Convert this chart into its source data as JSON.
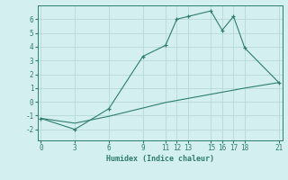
{
  "line1_x": [
    0,
    3,
    6,
    9,
    11,
    12,
    13,
    15,
    16,
    17,
    18,
    21
  ],
  "line1_y": [
    -1.2,
    -2.0,
    -0.5,
    3.3,
    4.1,
    6.0,
    6.2,
    6.6,
    5.2,
    6.2,
    3.9,
    1.4
  ],
  "line2_x": [
    0,
    3,
    6,
    9,
    11,
    12,
    13,
    15,
    16,
    17,
    18,
    21
  ],
  "line2_y": [
    -1.2,
    -1.55,
    -1.05,
    -0.45,
    -0.05,
    0.1,
    0.25,
    0.55,
    0.7,
    0.85,
    1.0,
    1.4
  ],
  "color": "#2e7d6e",
  "bg_color": "#d4efef",
  "grid_color": "#b8d8d8",
  "xlabel": "Humidex (Indice chaleur)",
  "xticks": [
    0,
    3,
    6,
    9,
    11,
    12,
    13,
    15,
    16,
    17,
    18,
    21
  ],
  "yticks": [
    -2,
    -1,
    0,
    1,
    2,
    3,
    4,
    5,
    6
  ],
  "ylim": [
    -2.8,
    7.0
  ],
  "xlim": [
    -0.3,
    21.3
  ]
}
